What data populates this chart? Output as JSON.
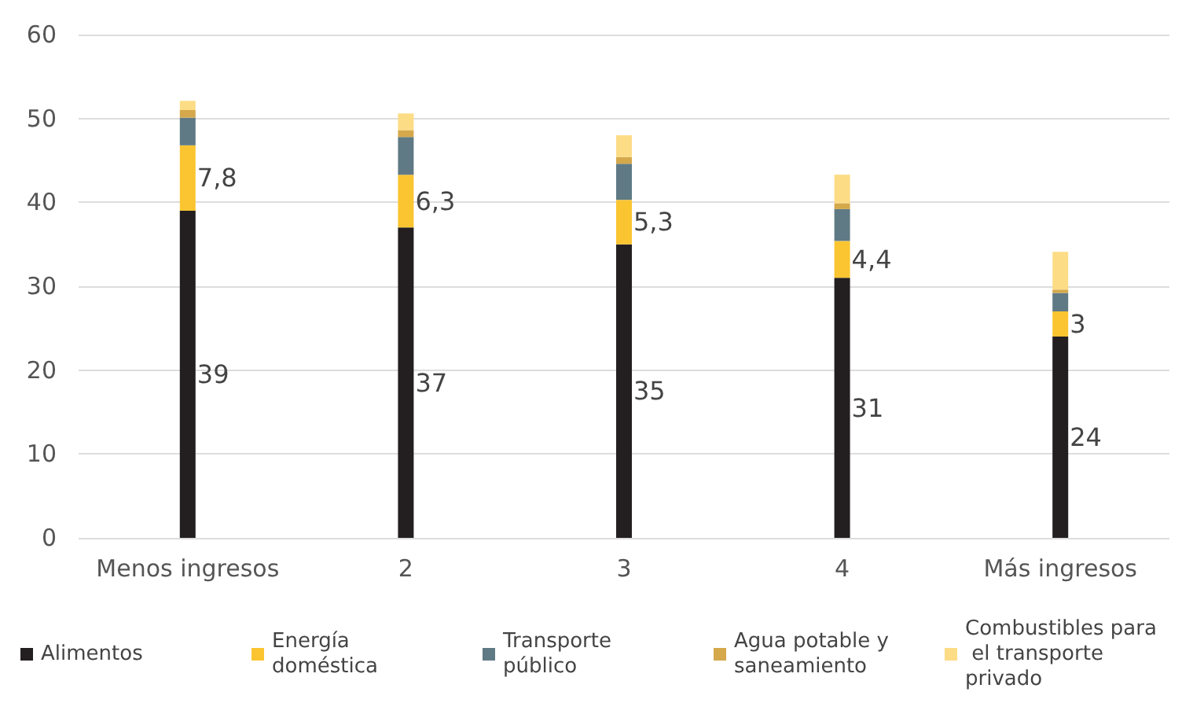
{
  "chart_data": {
    "type": "bar",
    "stacked": true,
    "categories": [
      "Menos ingresos",
      "2",
      "3",
      "4",
      "Más ingresos"
    ],
    "series": [
      {
        "name": "Alimentos",
        "color": "#231f20",
        "values": [
          39,
          37,
          35,
          31,
          24
        ],
        "value_labels": [
          "39",
          "37",
          "35",
          "31",
          "24"
        ]
      },
      {
        "name": "Energía doméstica",
        "color": "#fbc531",
        "values": [
          7.8,
          6.3,
          5.3,
          4.4,
          3
        ],
        "value_labels": [
          "7,8",
          "6,3",
          "5,3",
          "4,4",
          "3"
        ]
      },
      {
        "name": "Transporte público",
        "color": "#5f7a85",
        "values": [
          3.3,
          4.5,
          4.3,
          3.8,
          2.2
        ]
      },
      {
        "name": "Agua potable y saneamiento",
        "color": "#d4a84b",
        "values": [
          0.9,
          0.8,
          0.8,
          0.7,
          0.4
        ]
      },
      {
        "name": "Combustibles para el transporte privado",
        "color": "#fddc86",
        "values": [
          1.1,
          2.0,
          2.6,
          3.4,
          4.5
        ]
      }
    ],
    "ylim": [
      0,
      60
    ],
    "yticks": [
      0,
      10,
      20,
      30,
      40,
      50,
      60
    ],
    "grid": "y",
    "legend": "bottom"
  }
}
